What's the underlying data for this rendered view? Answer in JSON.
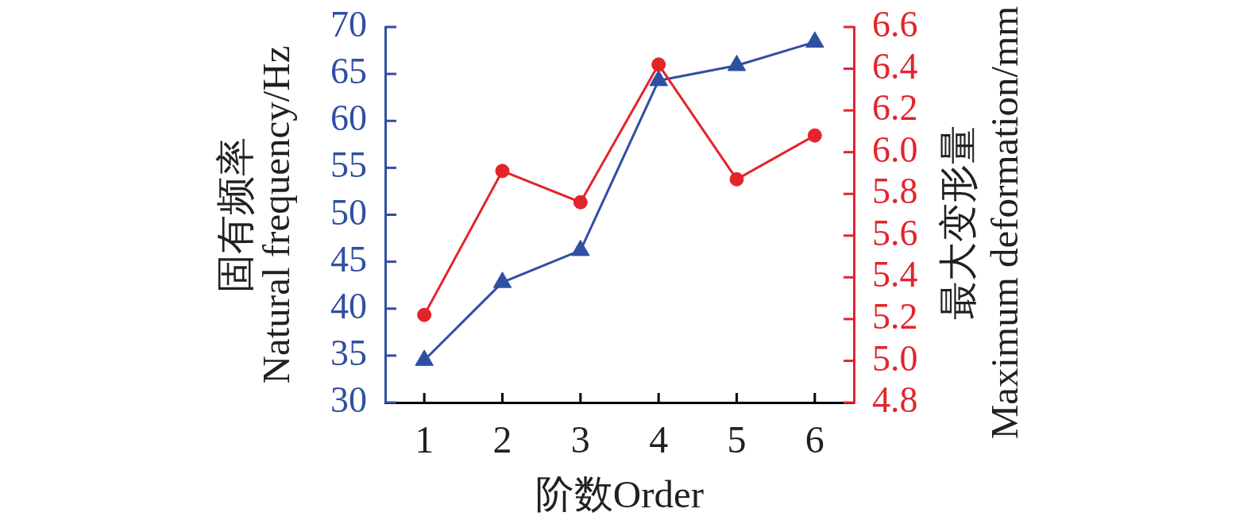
{
  "chart_data": {
    "type": "line",
    "xlabel": "阶数Order",
    "ylabel": "固有频率\nNatural frequency/Hz",
    "y2label": "最大变形量\nMaximum deformation/mm",
    "categories": [
      "1",
      "2",
      "3",
      "4",
      "5",
      "6"
    ],
    "series": [
      {
        "color": "#2f4fa2",
        "values": [
          34.5,
          42.8,
          46.2,
          64.3,
          65.9,
          68.4
        ],
        "marker": "triangle"
      },
      {
        "color": "#e3242b",
        "values": [
          5.22,
          5.91,
          5.76,
          6.42,
          5.87,
          6.08
        ],
        "marker": "circle",
        "axis": "y2"
      }
    ],
    "ylim": [
      30,
      70
    ],
    "yticks": [
      30,
      35,
      40,
      45,
      50,
      55,
      60,
      65,
      70
    ],
    "y2lim": [
      4.8,
      6.6
    ],
    "y2ticks": [
      4.8,
      {
        "value": 5,
        "label": "5.0"
      },
      5.2,
      5.4,
      5.6,
      5.8,
      {
        "value": 6,
        "label": "6.0"
      },
      6.2,
      6.4,
      6.6
    ],
    "grid": false,
    "legend": false,
    "line_style": "solid"
  }
}
